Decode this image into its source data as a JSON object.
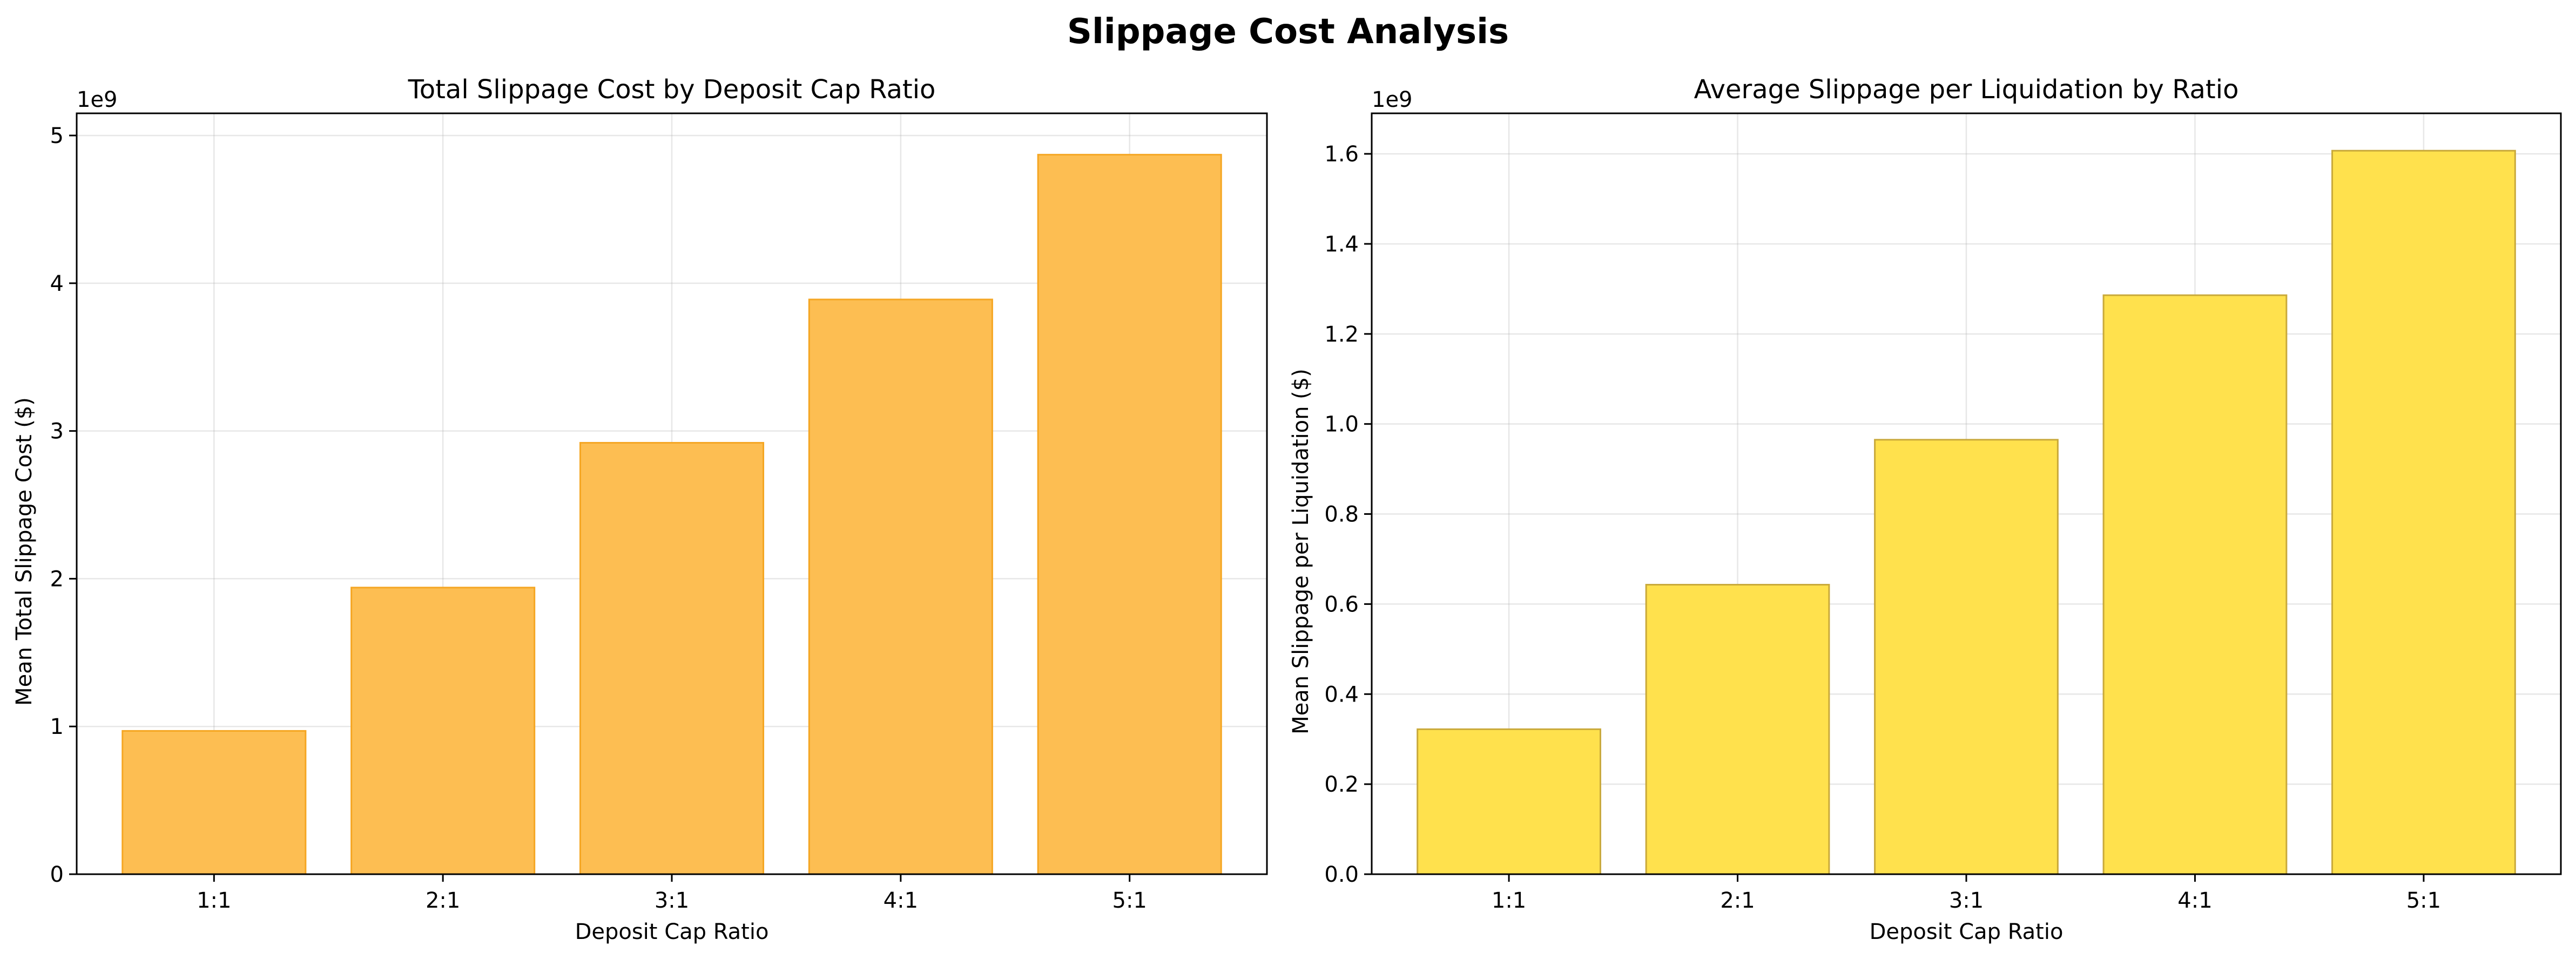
{
  "figure_title": "Slippage Cost Analysis",
  "colors": {
    "left_bar_fill": "#fdbe52",
    "left_bar_edge": "#f5a623",
    "right_bar_fill": "#ffe14d",
    "right_bar_edge": "#c9a93a"
  },
  "chart_data": [
    {
      "type": "bar",
      "title": "Total Slippage Cost by Deposit Cap Ratio",
      "xlabel": "Deposit Cap Ratio",
      "ylabel": "Mean Total Slippage Cost ($)",
      "offset_label": "1e9",
      "categories": [
        "1:1",
        "2:1",
        "3:1",
        "4:1",
        "5:1"
      ],
      "values": [
        0.97,
        1.94,
        2.92,
        3.89,
        4.87
      ],
      "ylim": [
        0,
        5.15
      ],
      "yticks": [
        0,
        1,
        2,
        3,
        4,
        5
      ],
      "ytick_labels": [
        "0",
        "1",
        "2",
        "3",
        "4",
        "5"
      ],
      "grid": true
    },
    {
      "type": "bar",
      "title": "Average Slippage per Liquidation by Ratio",
      "xlabel": "Deposit Cap Ratio",
      "ylabel": "Mean Slippage per Liquidation ($)",
      "offset_label": "1e9",
      "categories": [
        "1:1",
        "2:1",
        "3:1",
        "4:1",
        "5:1"
      ],
      "values": [
        0.322,
        0.643,
        0.965,
        1.286,
        1.607
      ],
      "ylim": [
        0,
        1.69
      ],
      "yticks": [
        0,
        0.2,
        0.4,
        0.6,
        0.8,
        1.0,
        1.2,
        1.4,
        1.6
      ],
      "ytick_labels": [
        "0.0",
        "0.2",
        "0.4",
        "0.6",
        "0.8",
        "1.0",
        "1.2",
        "1.4",
        "1.6"
      ],
      "grid": true
    }
  ]
}
